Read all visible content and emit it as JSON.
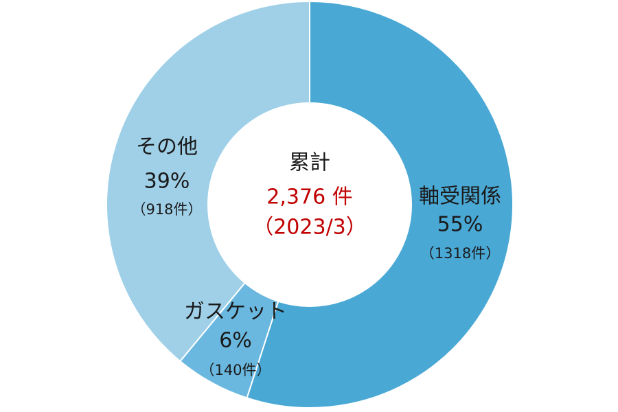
{
  "chart_data": {
    "type": "donut",
    "categories": [
      "軸受関係",
      "ガスケット",
      "その他"
    ],
    "values": [
      55,
      6,
      39
    ],
    "value_labels": [
      "55%",
      "6%",
      "39%"
    ],
    "count_labels": [
      "（1318件）",
      "（140件）",
      "（918件）"
    ],
    "colors": [
      "#4aa8d5",
      "#6ab8df",
      "#9fd0e8"
    ],
    "center_label": "累計",
    "total_label": "2,376 件",
    "date_label": "（2023/3）"
  }
}
